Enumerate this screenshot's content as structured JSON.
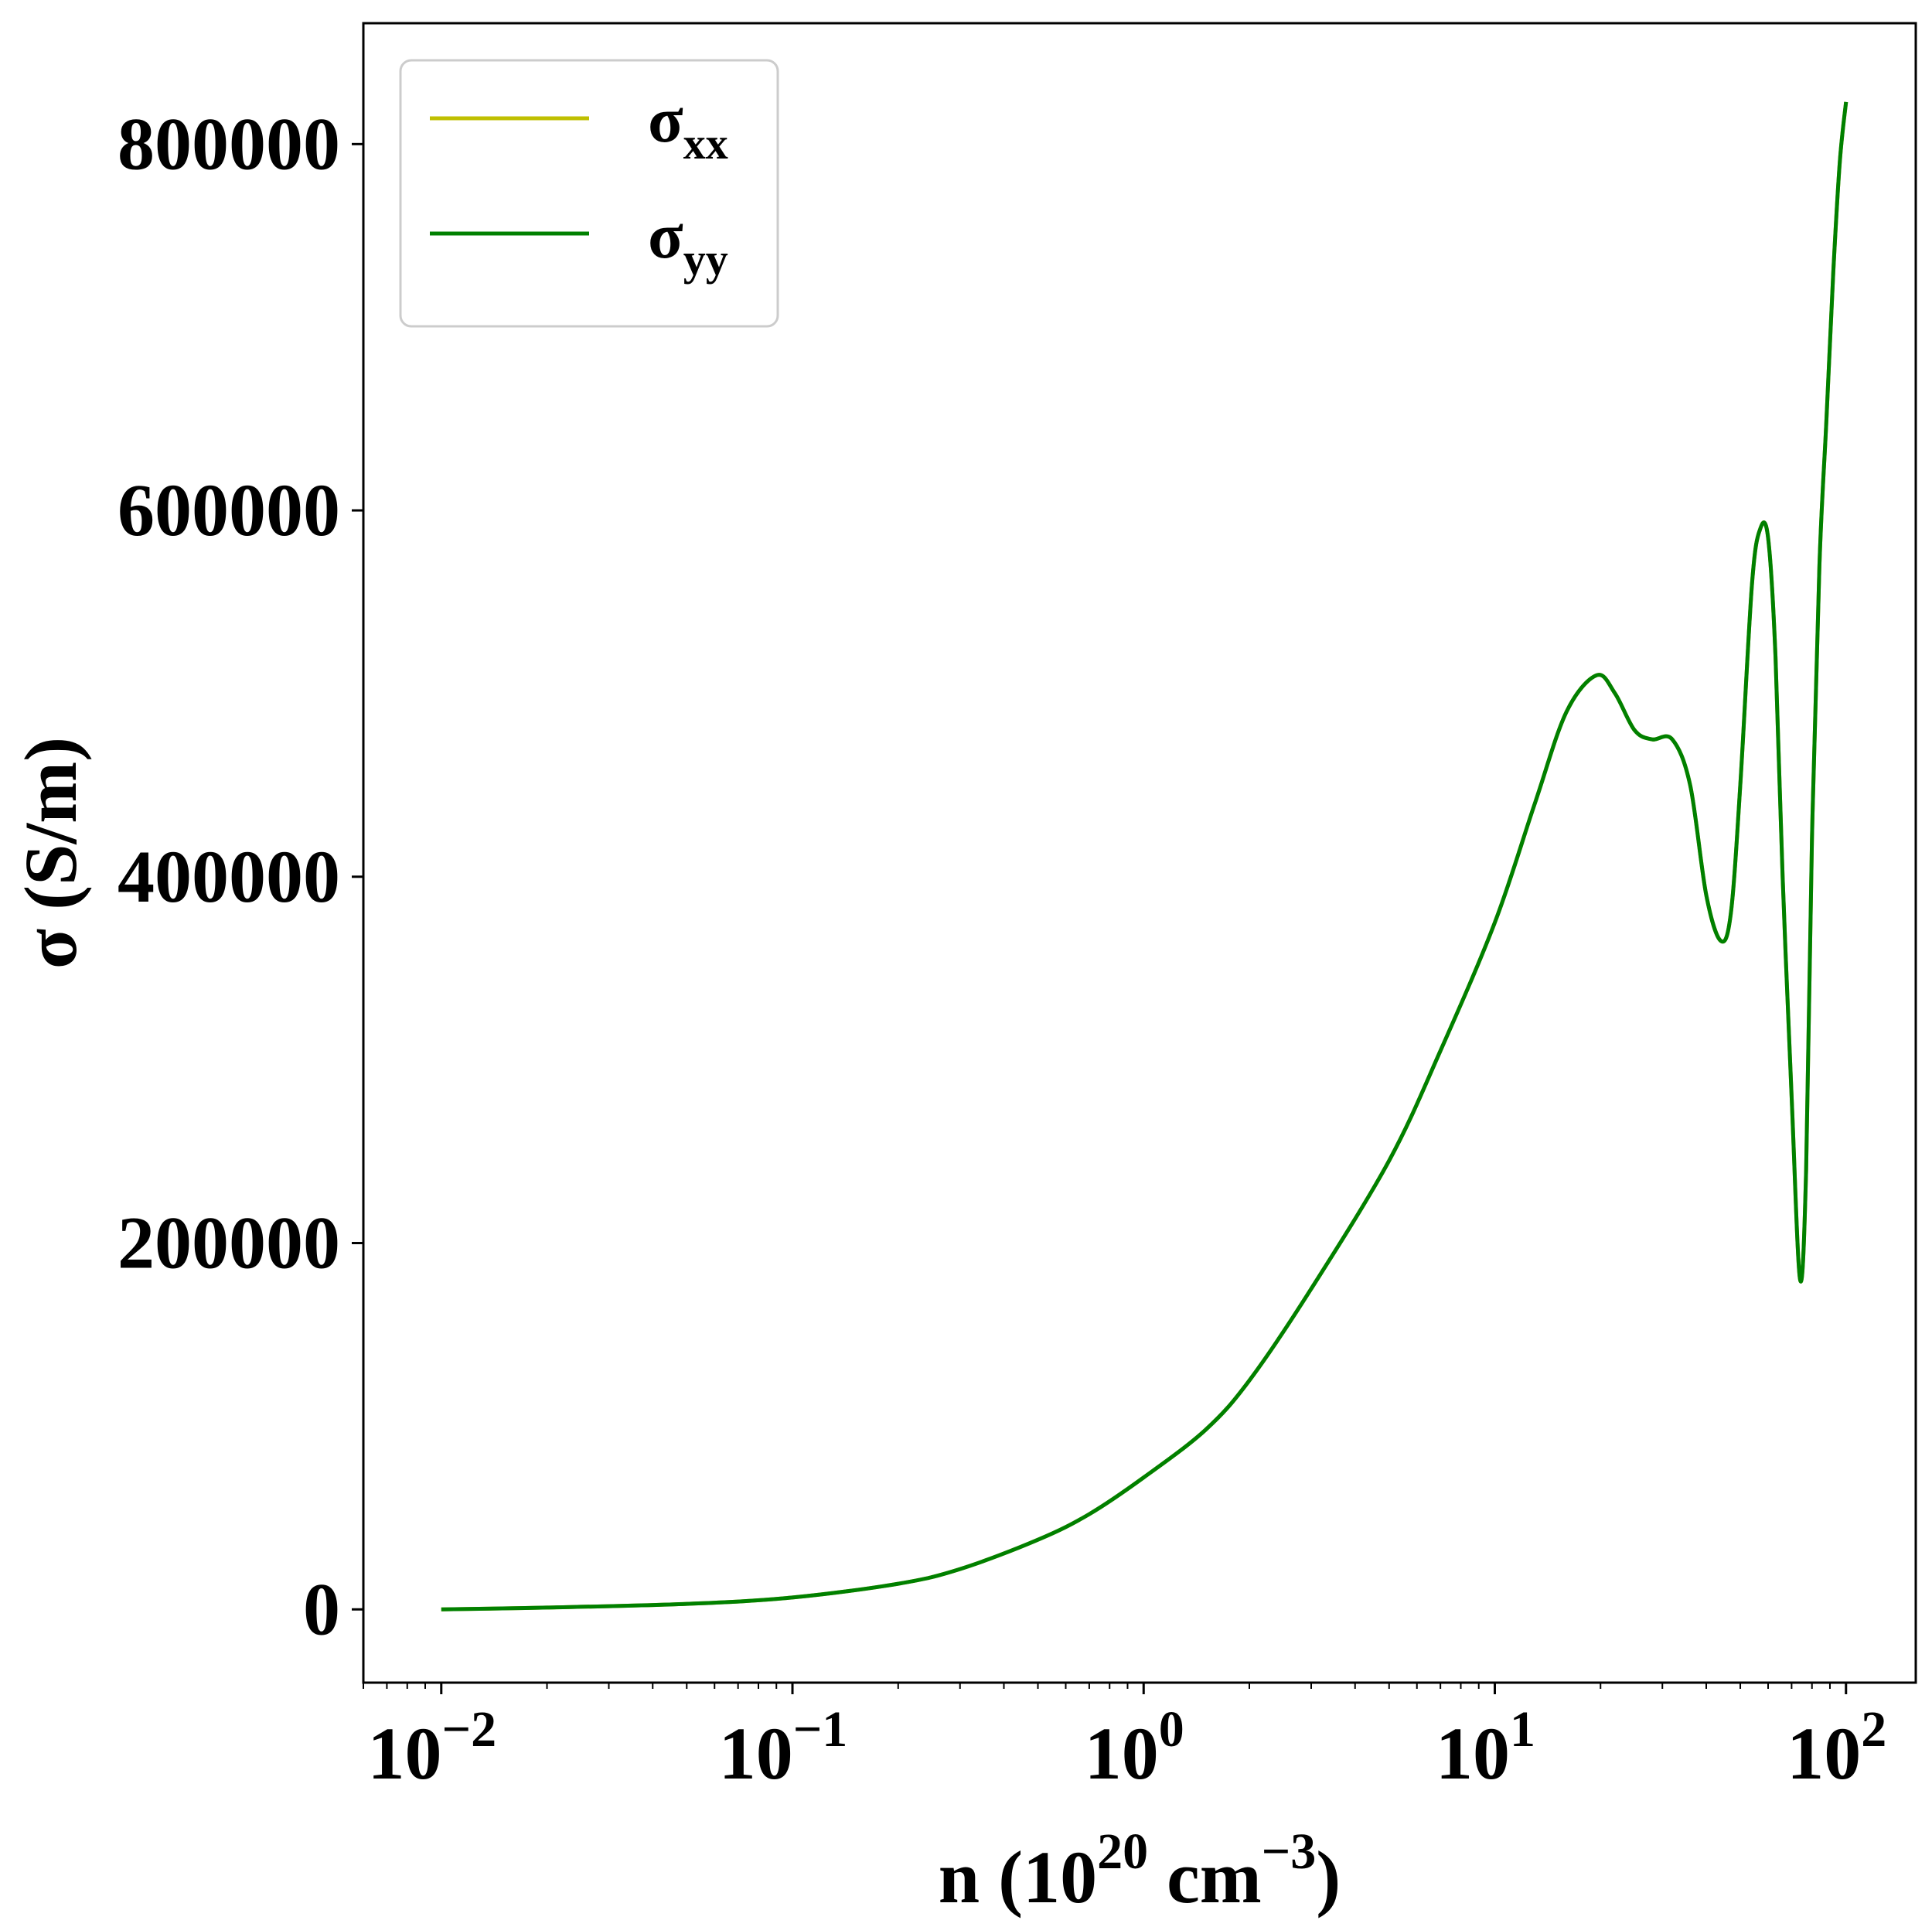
{
  "chart_data": {
    "type": "line",
    "xscale": "log",
    "xlim": [
      0.006,
      158
    ],
    "ylim": [
      -40000,
      866000
    ],
    "x_ticks": [
      {
        "value": 0.01,
        "base": "10",
        "exp": "−2"
      },
      {
        "value": 0.1,
        "base": "10",
        "exp": "−1"
      },
      {
        "value": 1,
        "base": "10",
        "exp": "0"
      },
      {
        "value": 10,
        "base": "10",
        "exp": "1"
      },
      {
        "value": 100,
        "base": "10",
        "exp": "2"
      }
    ],
    "y_ticks": [
      {
        "value": 0,
        "label": "0"
      },
      {
        "value": 200000,
        "label": "200000"
      },
      {
        "value": 400000,
        "label": "400000"
      },
      {
        "value": 600000,
        "label": "600000"
      },
      {
        "value": 800000,
        "label": "800000"
      }
    ],
    "xlabel": {
      "prefix": "n (10",
      "exp1": "20",
      "mid": " cm",
      "exp2": "−3",
      "suffix": ")"
    },
    "ylabel": "σ (S/m)",
    "legend_position": "upper-left",
    "series": [
      {
        "name": "σ",
        "name_sub": "xx",
        "color": "#bfbf00",
        "x": [
          0.01,
          0.02,
          0.05,
          0.1,
          0.2,
          0.3,
          0.5,
          0.7,
          1.0,
          1.5,
          2.0,
          3.0,
          5.0,
          7.0,
          10.0,
          13.0,
          16.0,
          19.5,
          22.0,
          25.0,
          28.0,
          32.0,
          36.0,
          40.0,
          44.0,
          47.0,
          50.0,
          54.0,
          57.0,
          60.0,
          63.0,
          66.0,
          70.0,
          74.0,
          77.0,
          80.0,
          84.0,
          88.0,
          92.0,
          96.0,
          100.0
        ],
        "y": [
          0,
          1000,
          3000,
          6500,
          14000,
          22000,
          38000,
          52000,
          72000,
          98000,
          125000,
          175000,
          245000,
          305000,
          375000,
          440000,
          490000,
          510000,
          500000,
          480000,
          475000,
          475000,
          450000,
          390000,
          365000,
          380000,
          450000,
          560000,
          590000,
          585000,
          520000,
          400000,
          280000,
          180000,
          240000,
          420000,
          570000,
          650000,
          730000,
          790000,
          823000
        ]
      },
      {
        "name": "σ",
        "name_sub": "yy",
        "color": "#008000",
        "x": [
          0.01,
          0.02,
          0.05,
          0.1,
          0.2,
          0.3,
          0.5,
          0.7,
          1.0,
          1.5,
          2.0,
          3.0,
          5.0,
          7.0,
          10.0,
          13.0,
          16.0,
          19.5,
          22.0,
          25.0,
          28.0,
          32.0,
          36.0,
          40.0,
          44.0,
          47.0,
          50.0,
          54.0,
          57.0,
          60.0,
          63.0,
          66.0,
          70.0,
          74.0,
          77.0,
          80.0,
          84.0,
          88.0,
          92.0,
          96.0,
          100.0
        ],
        "y": [
          0,
          1000,
          3000,
          6500,
          14000,
          22000,
          38000,
          52000,
          72000,
          98000,
          125000,
          175000,
          245000,
          305000,
          375000,
          440000,
          490000,
          510000,
          500000,
          480000,
          475000,
          475000,
          450000,
          390000,
          365000,
          380000,
          450000,
          560000,
          590000,
          585000,
          520000,
          400000,
          280000,
          180000,
          240000,
          420000,
          570000,
          650000,
          730000,
          790000,
          823000
        ]
      }
    ]
  }
}
